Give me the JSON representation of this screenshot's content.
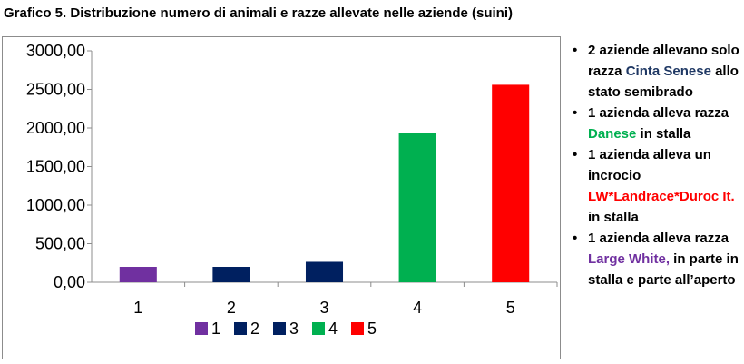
{
  "title": "Grafico 5. Distribuzione numero di animali e razze allevate nelle aziende (suini)",
  "chart_data": {
    "type": "bar",
    "categories": [
      "1",
      "2",
      "3",
      "4",
      "5"
    ],
    "values": [
      200,
      200,
      265,
      1930,
      2560
    ],
    "colors": [
      "#7030a0",
      "#002060",
      "#002060",
      "#00b050",
      "#ff0000"
    ],
    "ylim": [
      0,
      3000
    ],
    "yticks": [
      0,
      500,
      1000,
      1500,
      2000,
      2500,
      3000
    ],
    "ytick_labels": [
      "0,00",
      "500,00",
      "1000,00",
      "1500,00",
      "2000,00",
      "2500,00",
      "3000,00"
    ],
    "grid": false,
    "legend": {
      "position": "bottom",
      "entries": [
        "1",
        "2",
        "3",
        "4",
        "5"
      ]
    }
  },
  "notes": [
    {
      "bullet": "•",
      "before": "2 aziende allevano solo razza ",
      "highlight": "Cinta Senese",
      "highlight_color": "#1f3864",
      "after": " allo stato semibrado"
    },
    {
      "bullet": "•",
      "before": "1 azienda alleva razza ",
      "highlight": "Danese",
      "highlight_color": "#00b050",
      "after": " in stalla"
    },
    {
      "bullet": "•",
      "before": "1 azienda alleva un incrocio ",
      "highlight": "LW*Landrace*Duroc It.",
      "highlight_color": "#ff0000",
      "after": "  in stalla"
    },
    {
      "bullet": "•",
      "before": "1 azienda alleva razza ",
      "highlight": "Large White,",
      "highlight_color": "#7030a0",
      "after": "  in parte in stalla e parte all’aperto"
    }
  ]
}
